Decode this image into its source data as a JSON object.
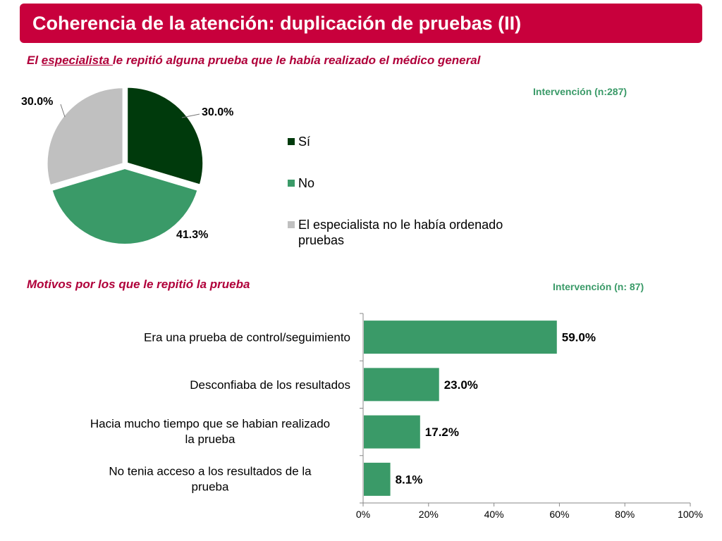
{
  "header": {
    "title": "Coherencia de la atención: duplicación de pruebas (II)"
  },
  "pie_section": {
    "subtitle_pre": "El ",
    "subtitle_emph": "especialista ",
    "subtitle_post": "le repitió alguna prueba que le había realizado el médico general",
    "note": "Intervención (n:287)"
  },
  "bar_section": {
    "subtitle": "Motivos por los que le repitió la prueba",
    "note": "Intervención (n: 87)"
  },
  "chart_data": [
    {
      "type": "pie",
      "slices": [
        {
          "label": "Sí",
          "value": 30.0,
          "display": "30.0%",
          "color": "#003a0c"
        },
        {
          "label": "No",
          "value": 41.3,
          "display": "41.3%",
          "color": "#3a9a68"
        },
        {
          "label": "El especialista no le había ordenado pruebas",
          "value": 30.0,
          "display": "30.0%",
          "color": "#c0c0c0"
        }
      ],
      "legend_position": "right"
    },
    {
      "type": "bar",
      "orientation": "horizontal",
      "categories": [
        "Era una prueba de control/seguimiento",
        "Desconfiaba de los resultados",
        "Hacia mucho tiempo que se habian realizado la prueba",
        "No tenia acceso a los resultados de la prueba"
      ],
      "values": [
        59.0,
        23.0,
        17.2,
        8.1
      ],
      "display": [
        "59.0%",
        "23.0%",
        "17.2%",
        "8.1%"
      ],
      "xlim": [
        0,
        100
      ],
      "ticks": [
        0,
        20,
        40,
        60,
        80,
        100
      ],
      "tick_labels": [
        "0%",
        "20%",
        "40%",
        "60%",
        "80%",
        "100%"
      ],
      "color": "#3a9a68",
      "grid": false
    }
  ]
}
